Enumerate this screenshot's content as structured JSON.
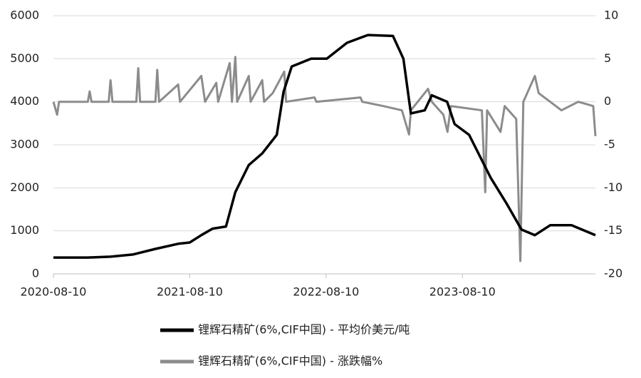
{
  "chart_data": {
    "type": "line",
    "xlim": [
      "2020-08-10",
      "2024-07-31"
    ],
    "xticks": [
      "2020-08-10",
      "2021-08-10",
      "2022-08-10",
      "2023-08-10"
    ],
    "ylim": [
      0,
      6000
    ],
    "yticks": [
      0,
      1000,
      2000,
      3000,
      4000,
      5000,
      6000
    ],
    "y2lim": [
      -20,
      10
    ],
    "y2ticks": [
      -20,
      -15,
      -10,
      -5,
      0,
      5,
      10
    ],
    "grid": true,
    "legend": "bottom",
    "series": [
      {
        "name": "锂辉石精矿(6%,CIF中国) - 平均价美元/吨",
        "color": "#000000",
        "x": [
          "2020-08-10",
          "2020-11-10",
          "2021-01-10",
          "2021-03-10",
          "2021-05-10",
          "2021-07-10",
          "2021-08-10",
          "2021-09-10",
          "2021-10-10",
          "2021-11-15",
          "2021-12-10",
          "2022-01-15",
          "2022-02-20",
          "2022-03-31",
          "2022-04-18",
          "2022-05-10",
          "2022-07-01",
          "2022-08-12",
          "2022-10-05",
          "2022-11-30",
          "2023-02-05",
          "2023-03-05",
          "2023-03-25",
          "2023-05-01",
          "2023-05-20",
          "2023-06-30",
          "2023-07-20",
          "2023-08-28",
          "2023-10-25",
          "2023-12-05",
          "2024-01-15",
          "2024-02-20",
          "2024-04-01",
          "2024-05-28",
          "2024-07-31"
        ],
        "values": [
          380,
          380,
          400,
          450,
          580,
          700,
          730,
          900,
          1050,
          1100,
          1900,
          2530,
          2800,
          3230,
          4230,
          4820,
          5000,
          5000,
          5370,
          5550,
          5530,
          5000,
          3730,
          3800,
          4150,
          4000,
          3480,
          3230,
          2230,
          1650,
          1030,
          900,
          1130,
          1130,
          900
        ]
      },
      {
        "name": "锂辉石精矿(6%,CIF中国) - 涨跌幅%",
        "color": "#8c8c8c",
        "axis": "y2",
        "x": [
          "2020-08-10",
          "2020-08-20",
          "2020-08-25",
          "2020-11-10",
          "2020-11-15",
          "2020-11-20",
          "2021-01-05",
          "2021-01-10",
          "2021-01-15",
          "2021-03-20",
          "2021-03-25",
          "2021-03-30",
          "2021-05-10",
          "2021-05-15",
          "2021-05-20",
          "2021-07-10",
          "2021-07-15",
          "2021-09-10",
          "2021-09-20",
          "2021-10-20",
          "2021-10-25",
          "2021-11-25",
          "2021-12-01",
          "2021-12-10",
          "2021-12-15",
          "2022-01-15",
          "2022-01-20",
          "2022-02-20",
          "2022-02-25",
          "2022-03-20",
          "2022-04-20",
          "2022-04-25",
          "2022-07-10",
          "2022-07-15",
          "2022-11-10",
          "2022-11-15",
          "2023-01-10",
          "2023-03-01",
          "2023-03-20",
          "2023-03-25",
          "2023-05-10",
          "2023-05-20",
          "2023-06-20",
          "2023-07-01",
          "2023-07-10",
          "2023-10-01",
          "2023-10-10",
          "2023-10-15",
          "2023-11-20",
          "2023-12-01",
          "2024-01-01",
          "2024-01-12",
          "2024-01-20",
          "2024-02-20",
          "2024-03-01",
          "2024-04-01",
          "2024-05-01",
          "2024-06-15",
          "2024-07-25",
          "2024-07-31"
        ],
        "values": [
          0,
          -1.5,
          0,
          0,
          1.2,
          0,
          0,
          2.5,
          0,
          0,
          3.9,
          0,
          0,
          3.7,
          0,
          2,
          0,
          3,
          0,
          2.2,
          0,
          4.5,
          0,
          5.2,
          0,
          3,
          0,
          2.5,
          0,
          1,
          3.5,
          0,
          0.5,
          0,
          0.5,
          0,
          -0.5,
          -1,
          -3.8,
          -1,
          1.5,
          0,
          -1.5,
          -3.5,
          -0.5,
          -1,
          -10.5,
          -1,
          -3.5,
          -0.5,
          -2,
          -18.5,
          0,
          3,
          1,
          0,
          -1,
          0,
          -0.5,
          -4
        ]
      }
    ]
  }
}
